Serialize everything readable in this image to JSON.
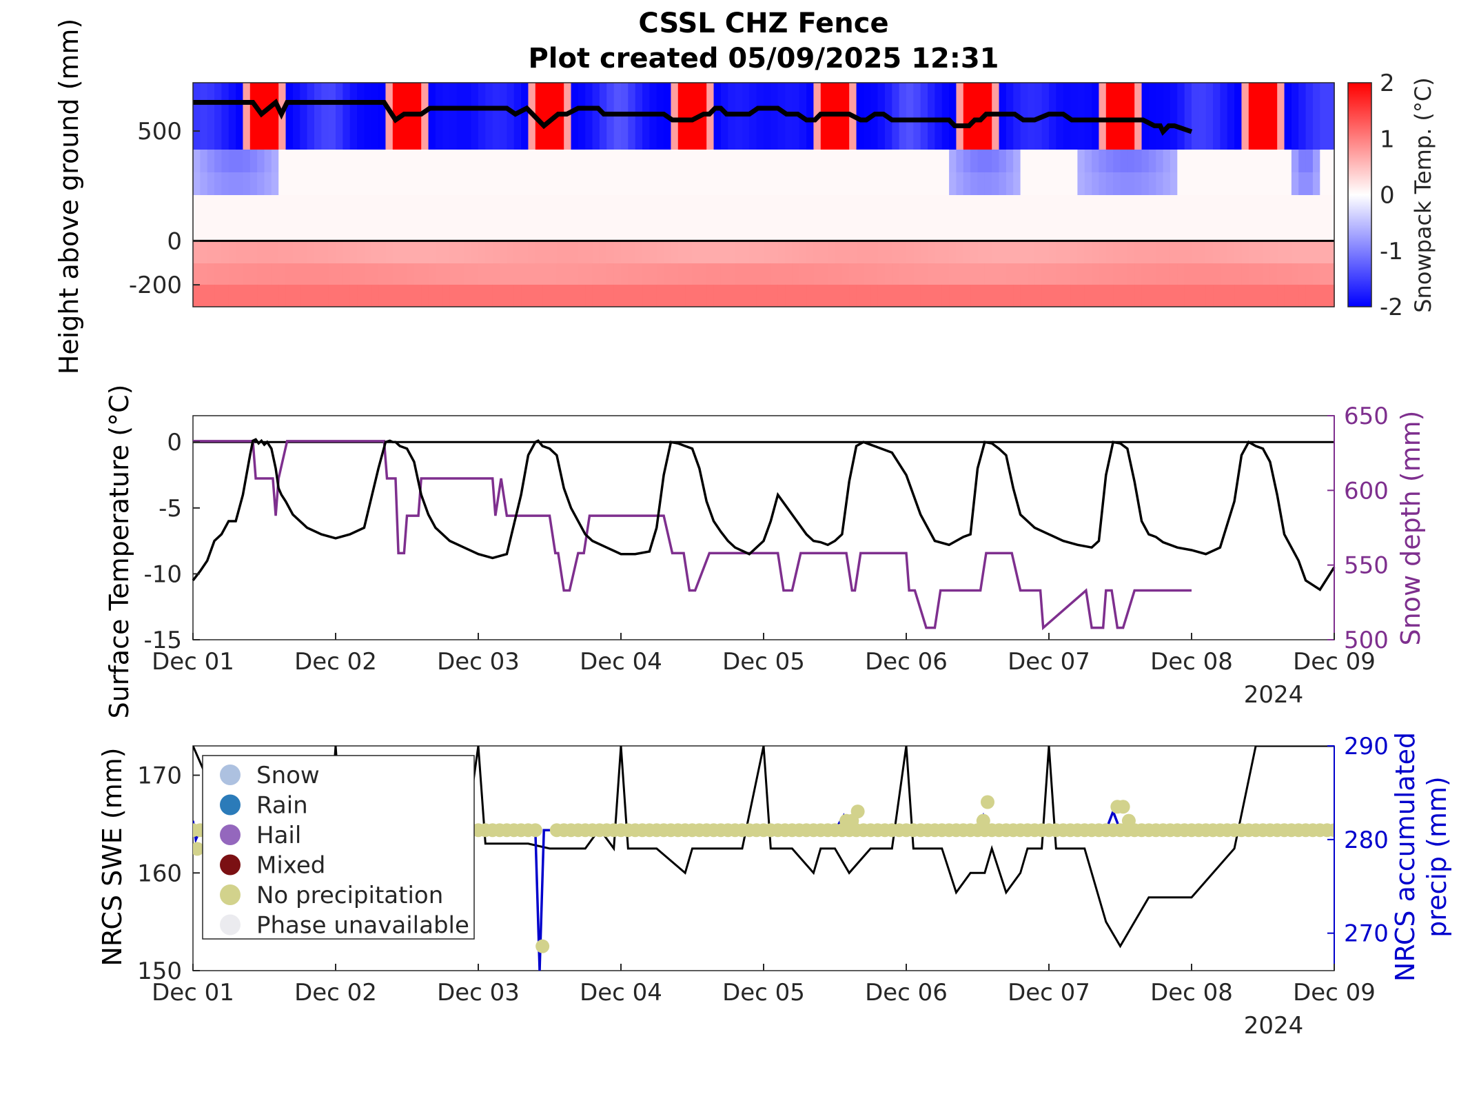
{
  "title": "CSSL CHZ Fence",
  "subtitle": "Plot created 05/09/2025 12:31",
  "x_ticks": [
    "Dec 01",
    "Dec 02",
    "Dec 03",
    "Dec 04",
    "Dec 05",
    "Dec 06",
    "Dec 07",
    "Dec 08",
    "Dec 09"
  ],
  "year_label": "2024",
  "colors": {
    "snowpack_cold": "#0000ff",
    "snowpack_warm": "#ff0000",
    "surface_temp_line": "#000000",
    "snow_depth_line": "#7e2f8e",
    "swe_line": "#000000",
    "accum_precip_line": "#0000cc",
    "no_precip_marker": "#d2d28c",
    "right_axis_depth": "#7e2f8e",
    "right_axis_precip": "#0000cc"
  },
  "chart_data": [
    {
      "type": "heatmap",
      "ylabel": "Height above ground (mm)",
      "yticks": [
        -200,
        0,
        500
      ],
      "ylim": [
        -300,
        720
      ],
      "colorbar": {
        "label": "Snowpack Temp. (°C)",
        "ticks": [
          -2,
          -1,
          0,
          1,
          2
        ],
        "range": [
          -2,
          2
        ],
        "colormap": "blue-white-red"
      },
      "xlim": [
        0,
        8
      ],
      "rows": [
        {
          "height_mm": 550,
          "pattern": "alternating cold nights (about -2 °C) and warm afternoons (about +2 °C)"
        },
        {
          "height_mm": 350,
          "pattern": "near 0 °C with slightly cold periods around Dec 01, Dec 06 and Dec 07"
        },
        {
          "height_mm": 150,
          "pattern": "near 0 °C"
        },
        {
          "height_mm": 50,
          "pattern": "near 0 °C"
        },
        {
          "height_mm": -50,
          "pattern": "about +0.8 °C"
        },
        {
          "height_mm": -150,
          "pattern": "about +1.0 °C"
        },
        {
          "height_mm": -250,
          "pattern": "about +1.2 °C"
        }
      ],
      "snow_depth_overlay": {
        "x": [
          0,
          0.42,
          0.48,
          0.58,
          0.62,
          0.66,
          0.7,
          1.34,
          1.42,
          1.48,
          1.6,
          1.66,
          1.72,
          1.8,
          2.2,
          2.26,
          2.34,
          2.42,
          2.46,
          2.56,
          2.6,
          2.62,
          2.7,
          2.74,
          2.8,
          2.84,
          2.88,
          2.92,
          2.96,
          3.3,
          3.36,
          3.5,
          3.58,
          3.62,
          3.66,
          3.7,
          3.74,
          3.78,
          3.84,
          3.9,
          3.96,
          4.1,
          4.16,
          4.24,
          4.3,
          4.36,
          4.4,
          4.6,
          4.68,
          4.72,
          4.78,
          4.84,
          4.9,
          4.96,
          5.2,
          5.3,
          5.34,
          5.44,
          5.48,
          5.52,
          5.56,
          5.6,
          5.64,
          5.7,
          5.76,
          5.82,
          5.86,
          5.9,
          6,
          6.1,
          6.16,
          6.26,
          6.4,
          6.46,
          6.6,
          6.66,
          6.74,
          6.78,
          6.8,
          6.84,
          6.88,
          7.0
        ],
        "y": [
          635,
          635,
          625,
          635,
          625,
          635,
          635,
          635,
          620,
          625,
          625,
          630,
          630,
          630,
          630,
          625,
          630,
          620,
          615,
          625,
          625,
          625,
          630,
          630,
          630,
          630,
          625,
          625,
          625,
          625,
          620,
          620,
          625,
          625,
          630,
          630,
          625,
          625,
          625,
          625,
          630,
          630,
          625,
          625,
          620,
          620,
          625,
          625,
          620,
          620,
          625,
          625,
          620,
          620,
          620,
          620,
          615,
          615,
          620,
          620,
          625,
          625,
          625,
          625,
          625,
          620,
          620,
          620,
          625,
          625,
          620,
          620,
          620,
          620,
          620,
          620,
          615,
          615,
          610,
          615,
          615,
          610
        ]
      }
    },
    {
      "type": "line",
      "ylabel": "Surface Temperature (°C)",
      "y2label": "Snow depth (mm)",
      "ylim": [
        -15,
        2
      ],
      "yticks": [
        -15,
        -10,
        -5,
        0
      ],
      "y2lim": [
        500,
        650
      ],
      "y2ticks": [
        500,
        550,
        600,
        650
      ],
      "xlim": [
        0,
        8
      ],
      "series": [
        {
          "axis": "left",
          "x": [
            0,
            0.05,
            0.1,
            0.15,
            0.2,
            0.25,
            0.3,
            0.35,
            0.4,
            0.42,
            0.44,
            0.46,
            0.48,
            0.5,
            0.52,
            0.55,
            0.58,
            0.6,
            0.62,
            0.65,
            0.7,
            0.75,
            0.8,
            0.9,
            1.0,
            1.1,
            1.2,
            1.3,
            1.35,
            1.38,
            1.4,
            1.42,
            1.45,
            1.5,
            1.55,
            1.6,
            1.65,
            1.7,
            1.75,
            1.8,
            1.9,
            2.0,
            2.1,
            2.2,
            2.3,
            2.35,
            2.4,
            2.42,
            2.45,
            2.5,
            2.55,
            2.6,
            2.65,
            2.7,
            2.75,
            2.8,
            2.9,
            3.0,
            3.1,
            3.2,
            3.25,
            3.3,
            3.35,
            3.4,
            3.45,
            3.5,
            3.55,
            3.6,
            3.65,
            3.7,
            3.75,
            3.8,
            3.9,
            4.0,
            4.05,
            4.1,
            4.2,
            4.3,
            4.35,
            4.4,
            4.45,
            4.5,
            4.55,
            4.6,
            4.65,
            4.7,
            4.75,
            4.8,
            4.9,
            5.0,
            5.1,
            5.15,
            5.2,
            5.3,
            5.35,
            5.4,
            5.45,
            5.5,
            5.55,
            5.6,
            5.65,
            5.7,
            5.75,
            5.8,
            5.9,
            6.0,
            6.1,
            6.2,
            6.3,
            6.35,
            6.4,
            6.45,
            6.5,
            6.55,
            6.6,
            6.65,
            6.7,
            6.75,
            6.8,
            6.9,
            7.0,
            7.1,
            7.2,
            7.3,
            7.35,
            7.4,
            7.45,
            7.5,
            7.55,
            7.6,
            7.65,
            7.7,
            7.75,
            7.8,
            7.9,
            8.0
          ],
          "y": [
            -10.5,
            -9.8,
            -9.0,
            -7.5,
            -7.0,
            -6.0,
            -6.0,
            -4.0,
            -1.0,
            0.1,
            0.2,
            -0.1,
            0.1,
            -0.2,
            0.0,
            -0.5,
            -2.0,
            -3.5,
            -4.0,
            -4.5,
            -5.5,
            -6.0,
            -6.5,
            -7.0,
            -7.3,
            -7.0,
            -6.5,
            -2.0,
            0.0,
            0.1,
            0.0,
            0.0,
            -0.3,
            -0.5,
            -1.5,
            -4.0,
            -5.5,
            -6.5,
            -7.0,
            -7.5,
            -8.0,
            -8.5,
            -8.8,
            -8.5,
            -4.0,
            -1.0,
            0.0,
            0.1,
            -0.3,
            -0.5,
            -1.0,
            -3.5,
            -5.0,
            -6.0,
            -7.0,
            -7.5,
            -8.0,
            -8.5,
            -8.5,
            -8.3,
            -6.5,
            -2.5,
            0.0,
            -0.1,
            -0.3,
            -0.5,
            -2.0,
            -4.5,
            -6.0,
            -6.8,
            -7.5,
            -8.0,
            -8.5,
            -7.5,
            -6.0,
            -4.0,
            -5.5,
            -7.0,
            -7.5,
            -7.6,
            -7.8,
            -7.5,
            -7.0,
            -3.0,
            -0.3,
            0.0,
            -0.2,
            -0.4,
            -0.8,
            -2.5,
            -5.5,
            -6.5,
            -7.5,
            -7.8,
            -7.5,
            -7.2,
            -7.0,
            -2.0,
            0.0,
            -0.1,
            -0.5,
            -1.0,
            -3.5,
            -5.5,
            -6.5,
            -7.0,
            -7.5,
            -7.8,
            -8.0,
            -7.5,
            -2.5,
            0.0,
            -0.1,
            -0.5,
            -3.0,
            -6.0,
            -7.0,
            -7.2,
            -7.6,
            -8.0,
            -8.2,
            -8.5,
            -8.0,
            -4.5,
            -1.0,
            0.0,
            -0.3,
            -0.5,
            -1.5,
            -4.0,
            -7.0,
            -8.0,
            -9.0,
            -10.5,
            -11.2,
            -9.5
          ]
        },
        {
          "axis": "right",
          "name": "Snow depth",
          "x": [
            0,
            0.42,
            0.44,
            0.56,
            0.58,
            0.6,
            0.66,
            1.34,
            1.36,
            1.42,
            1.44,
            1.48,
            1.5,
            1.58,
            1.6,
            1.7,
            2.1,
            2.12,
            2.16,
            2.2,
            2.24,
            2.5,
            2.54,
            2.56,
            2.6,
            2.64,
            2.7,
            2.74,
            2.78,
            2.86,
            2.9,
            2.94,
            3.3,
            3.36,
            3.44,
            3.48,
            3.52,
            3.62,
            3.66,
            3.8,
            3.84,
            4.1,
            4.14,
            4.2,
            4.26,
            4.38,
            4.4,
            4.58,
            4.62,
            4.64,
            4.68,
            4.76,
            4.78,
            5.0,
            5.02,
            5.06,
            5.14,
            5.2,
            5.24,
            5.52,
            5.56,
            5.62,
            5.66,
            5.72,
            5.74,
            5.8,
            5.84,
            5.94,
            5.96,
            6.26,
            6.3,
            6.38,
            6.4,
            6.44,
            6.48,
            6.52,
            6.6,
            7.0
          ],
          "y": [
            633,
            633,
            608,
            608,
            583,
            608,
            633,
            633,
            608,
            608,
            558,
            558,
            583,
            583,
            608,
            608,
            608,
            583,
            608,
            583,
            583,
            583,
            558,
            558,
            533,
            533,
            558,
            558,
            583,
            583,
            583,
            583,
            583,
            558,
            558,
            533,
            533,
            558,
            558,
            558,
            558,
            558,
            533,
            533,
            558,
            558,
            558,
            558,
            533,
            533,
            558,
            558,
            558,
            558,
            533,
            533,
            508,
            508,
            533,
            533,
            558,
            558,
            558,
            558,
            558,
            533,
            533,
            533,
            508,
            533,
            508,
            508,
            533,
            533,
            508,
            508,
            533,
            533
          ]
        }
      ]
    },
    {
      "type": "line",
      "ylabel": "NRCS SWE (mm)",
      "y2label": "NRCS accumulated precip (mm)",
      "ylim": [
        150,
        173
      ],
      "yticks": [
        150,
        160,
        170
      ],
      "y2lim": [
        266,
        290
      ],
      "y2ticks": [
        270,
        280,
        290
      ],
      "xlim": [
        0,
        8
      ],
      "legend": {
        "placement": "top-left",
        "entries": [
          "Snow",
          "Rain",
          "Hail",
          "Mixed",
          "No precipitation",
          "Phase unavailable"
        ],
        "colors": [
          "#adc1e0",
          "#2b7bb9",
          "#9467bd",
          "#7b1013",
          "#d2d28c",
          "#ebebef"
        ]
      },
      "series": [
        {
          "axis": "left",
          "name": "NRCS SWE",
          "x": [
            0,
            0.3,
            0.5,
            0.7,
            0.95,
            1.0,
            1.05,
            1.3,
            1.9,
            2.0,
            2.05,
            2.35,
            2.5,
            2.75,
            2.85,
            2.95,
            3.0,
            3.05,
            3.25,
            3.45,
            3.5,
            3.6,
            3.85,
            4.0,
            4.05,
            4.2,
            4.35,
            4.4,
            4.5,
            4.6,
            4.75,
            4.9,
            5.0,
            5.05,
            5.25,
            5.35,
            5.45,
            5.55,
            5.6,
            5.7,
            5.8,
            5.85,
            5.9,
            5.95,
            6.0,
            6.05,
            6.25,
            6.4,
            6.5,
            6.6,
            6.7,
            6.75,
            6.85,
            7.0,
            7.3,
            7.45,
            7.5,
            7.55,
            7.7,
            7.8,
            7.9,
            8.0
          ],
          "y": [
            173,
            163,
            162.5,
            163,
            163,
            173,
            163,
            163,
            162.5,
            173,
            163,
            163,
            162.5,
            162.5,
            164.5,
            162.5,
            173,
            162.5,
            162.5,
            160,
            162.5,
            162.5,
            162.5,
            173,
            162.5,
            162.5,
            160,
            162.5,
            162.5,
            160,
            162.5,
            162.5,
            173,
            162.5,
            162.5,
            158,
            160,
            160,
            162.5,
            158,
            160,
            162.5,
            162.5,
            162.5,
            173,
            162.5,
            162.5,
            155,
            152.5,
            155,
            157.5,
            157.5,
            157.5,
            157.5,
            162.5,
            173,
            173,
            173,
            173,
            173,
            173,
            173
          ]
        },
        {
          "axis": "right",
          "name": "NRCS accumulated precip",
          "x": [
            0,
            0.02,
            0.05,
            2.4,
            2.43,
            2.46,
            2.5,
            4.5,
            4.56,
            4.58,
            4.62,
            4.66,
            5.5,
            5.54,
            5.57,
            5.6,
            6.4,
            6.45,
            6.5,
            6.55,
            7.0,
            8.0
          ],
          "y": [
            282,
            280,
            281,
            281,
            266,
            281,
            281,
            281,
            282.5,
            281,
            282,
            281,
            281,
            282.5,
            281,
            281,
            281,
            283,
            281,
            281,
            281,
            281
          ]
        },
        {
          "axis": "right",
          "name": "No precipitation",
          "x": [
            0.03,
            2.45,
            4.58,
            4.62,
            4.66,
            5.54,
            5.57,
            6.48,
            6.52,
            6.56
          ],
          "y": [
            279,
            268.6,
            282,
            282,
            283,
            282,
            284,
            283.5,
            283.5,
            282
          ]
        }
      ],
      "no_precip_marker_band": {
        "y": 281,
        "x_range": [
          0,
          8
        ]
      }
    }
  ]
}
